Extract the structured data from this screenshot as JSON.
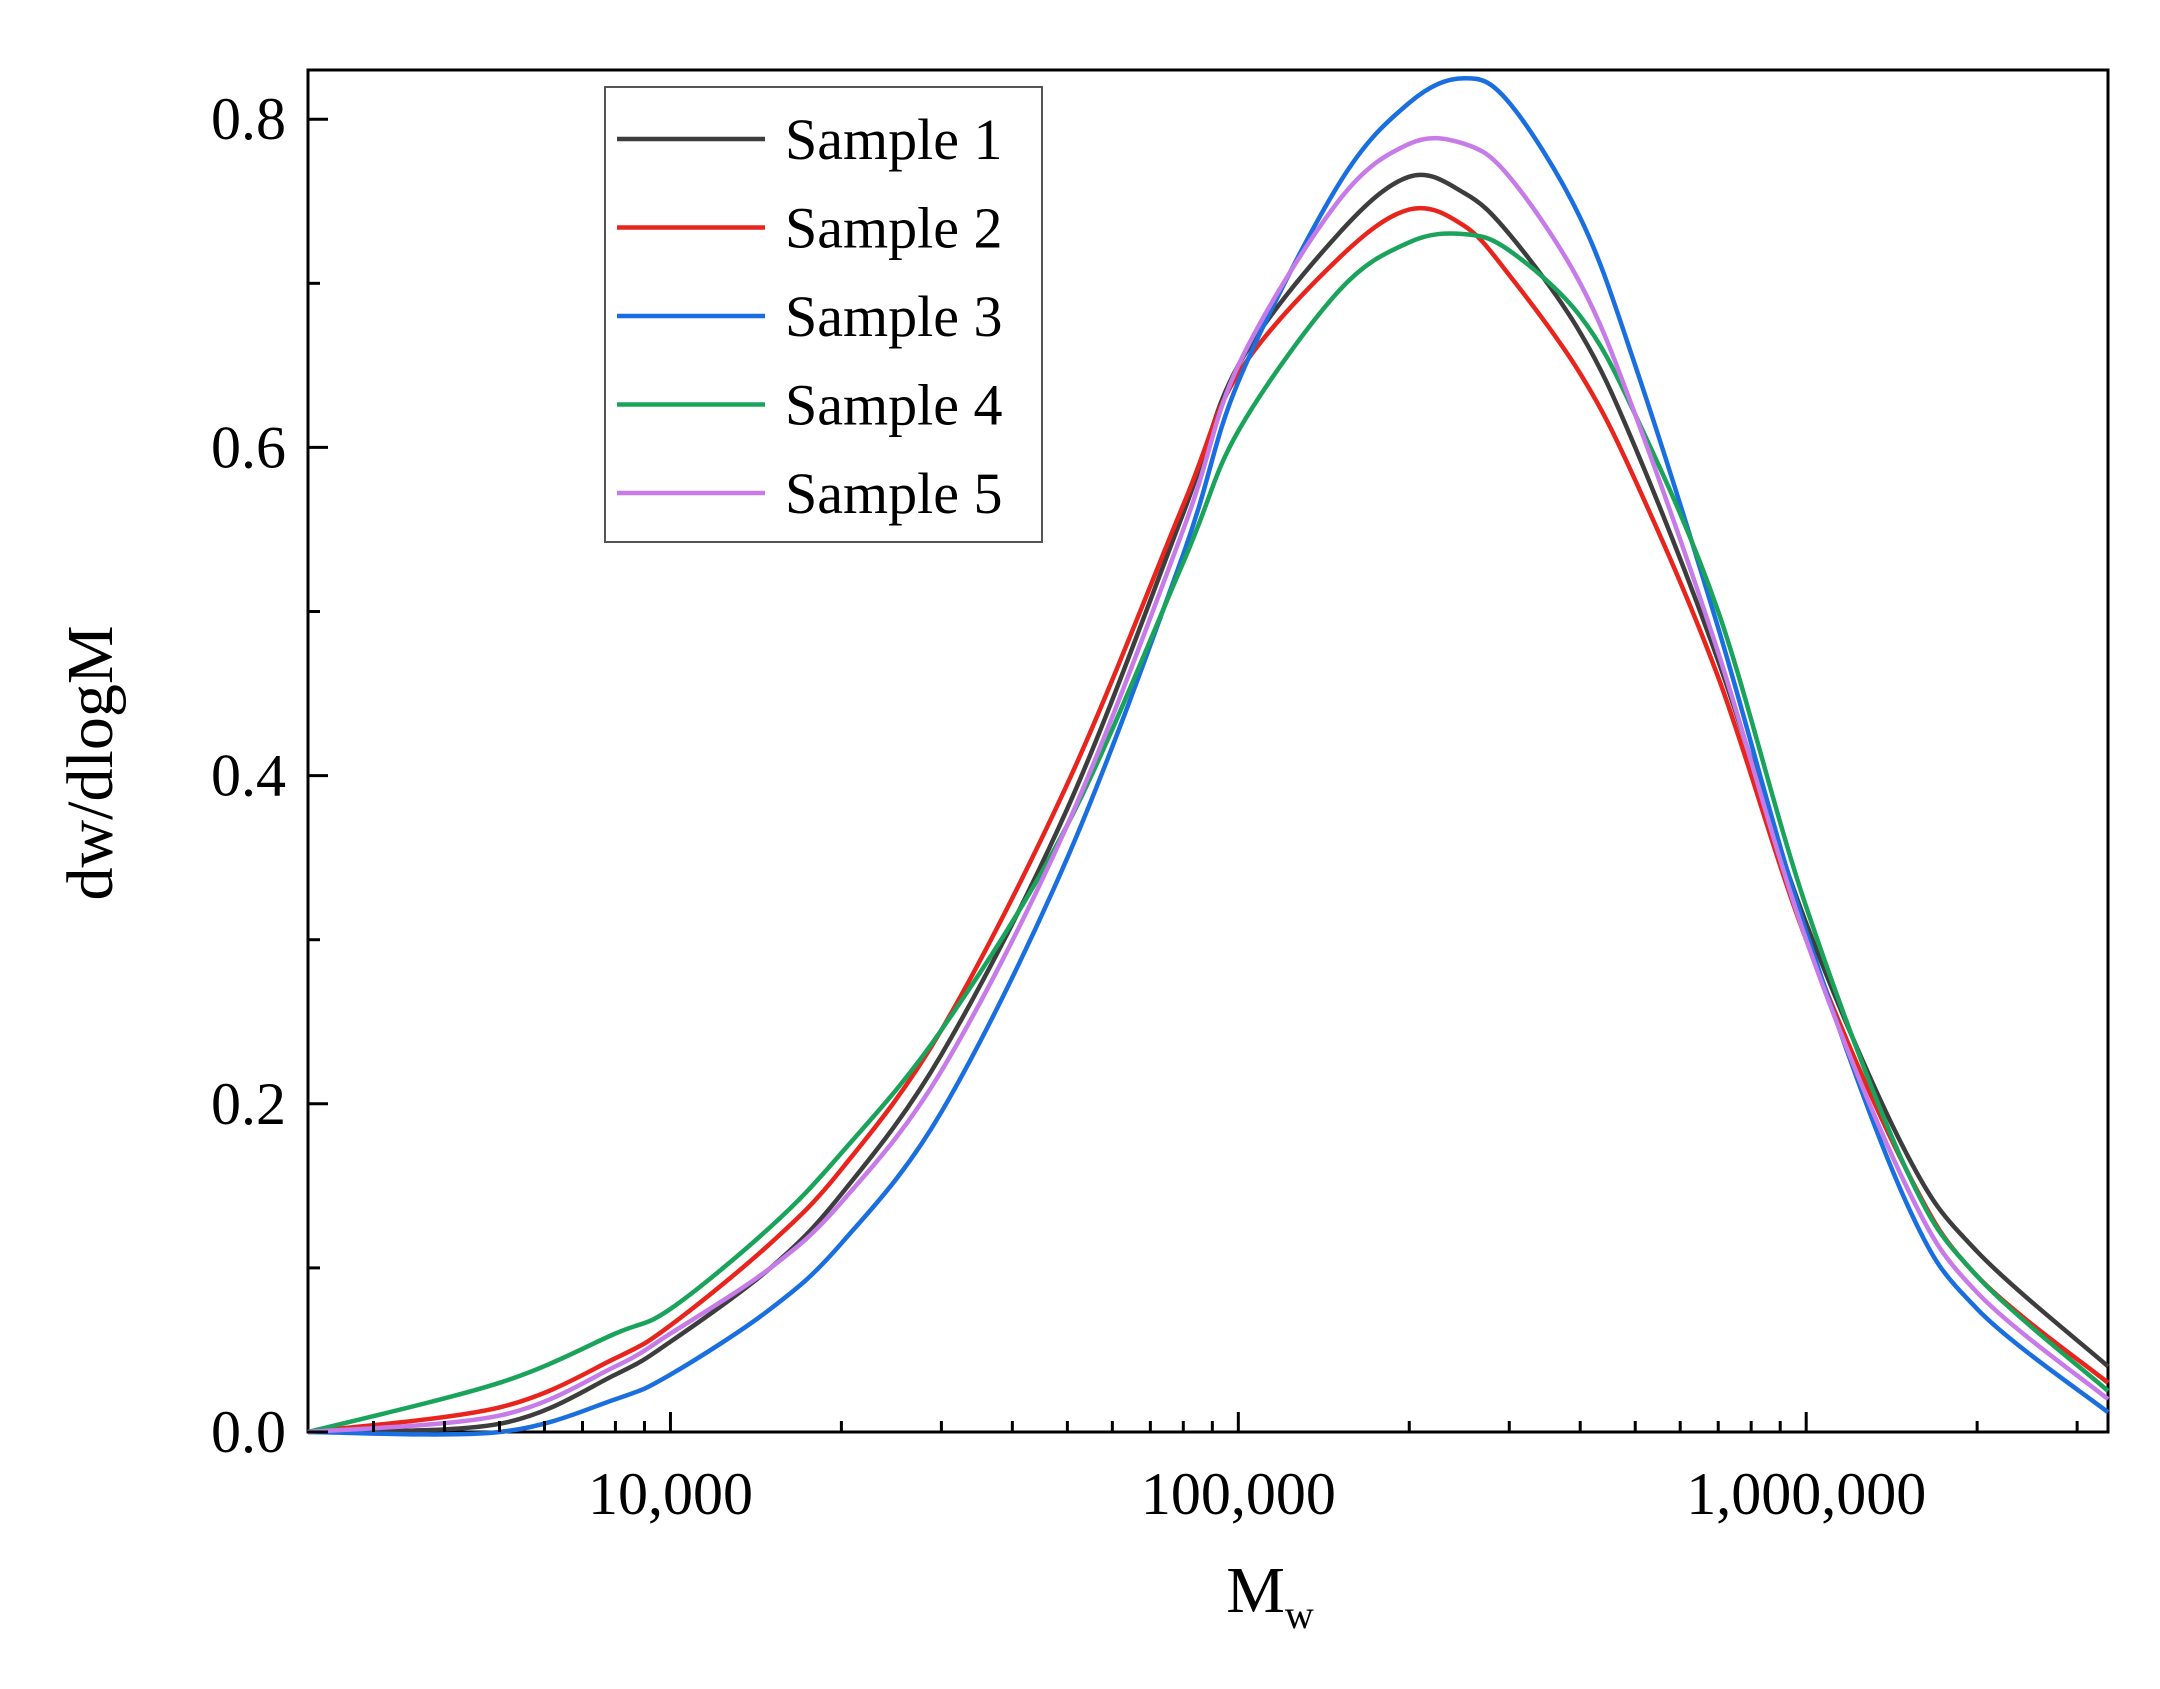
{
  "chart_data": {
    "type": "line",
    "title": "",
    "xlabel": "M",
    "xlabel_sub": "w",
    "ylabel": "dw/dlogM",
    "xscale": "log",
    "xlim": [
      2300,
      3400000
    ],
    "ylim": [
      0,
      0.83
    ],
    "x_tick_values": [
      10000,
      100000,
      1000000
    ],
    "x_tick_labels": [
      "10,000",
      "100,000",
      "1,000,000"
    ],
    "y_tick_values": [
      0.0,
      0.2,
      0.4,
      0.6,
      0.8
    ],
    "y_tick_labels": [
      "0.0",
      "0.2",
      "0.4",
      "0.6",
      "0.8"
    ],
    "legend_position": "top-left",
    "series": [
      {
        "name": "Sample 1",
        "color": "#3d3d3d",
        "x": [
          2300,
          5000,
          8000,
          10000,
          15000,
          20000,
          30000,
          50000,
          80000,
          100000,
          150000,
          200000,
          250000,
          300000,
          400000,
          500000,
          700000,
          1000000,
          1500000,
          2000000,
          3400000
        ],
        "y": [
          0.0,
          0.005,
          0.035,
          0.055,
          0.1,
          0.145,
          0.23,
          0.38,
          0.56,
          0.65,
          0.73,
          0.765,
          0.755,
          0.73,
          0.67,
          0.6,
          0.47,
          0.31,
          0.17,
          0.11,
          0.04
        ]
      },
      {
        "name": "Sample 2",
        "color": "#e8241c",
        "x": [
          2300,
          5000,
          8000,
          10000,
          15000,
          20000,
          30000,
          50000,
          80000,
          100000,
          150000,
          200000,
          250000,
          300000,
          400000,
          500000,
          700000,
          1000000,
          1500000,
          2000000,
          3400000
        ],
        "y": [
          0.0,
          0.015,
          0.045,
          0.065,
          0.115,
          0.16,
          0.245,
          0.395,
          0.565,
          0.645,
          0.715,
          0.745,
          0.735,
          0.705,
          0.645,
          0.58,
          0.46,
          0.3,
          0.16,
          0.095,
          0.03
        ]
      },
      {
        "name": "Sample 3",
        "color": "#1a6fe0",
        "x": [
          2300,
          5000,
          8000,
          10000,
          15000,
          20000,
          30000,
          50000,
          80000,
          100000,
          150000,
          200000,
          250000,
          300000,
          400000,
          500000,
          700000,
          1000000,
          1500000,
          2000000,
          3400000
        ],
        "y": [
          0.0,
          0.0,
          0.02,
          0.035,
          0.075,
          0.115,
          0.195,
          0.35,
          0.535,
          0.64,
          0.76,
          0.81,
          0.825,
          0.81,
          0.74,
          0.65,
          0.49,
          0.305,
          0.14,
          0.075,
          0.012
        ]
      },
      {
        "name": "Sample 4",
        "color": "#1aa35a",
        "x": [
          2300,
          5000,
          8000,
          10000,
          15000,
          20000,
          30000,
          50000,
          80000,
          100000,
          150000,
          200000,
          250000,
          300000,
          400000,
          500000,
          700000,
          1000000,
          1500000,
          2000000,
          3400000
        ],
        "y": [
          0.0,
          0.03,
          0.06,
          0.075,
          0.125,
          0.17,
          0.245,
          0.37,
          0.53,
          0.61,
          0.695,
          0.725,
          0.73,
          0.72,
          0.68,
          0.62,
          0.5,
          0.32,
          0.16,
          0.095,
          0.025
        ]
      },
      {
        "name": "Sample 5",
        "color": "#c77be8",
        "x": [
          2300,
          5000,
          8000,
          10000,
          15000,
          20000,
          30000,
          50000,
          80000,
          100000,
          150000,
          200000,
          250000,
          300000,
          400000,
          500000,
          700000,
          1000000,
          1500000,
          2000000,
          3400000
        ],
        "y": [
          0.0,
          0.01,
          0.04,
          0.06,
          0.1,
          0.14,
          0.22,
          0.37,
          0.55,
          0.65,
          0.75,
          0.785,
          0.785,
          0.765,
          0.7,
          0.62,
          0.475,
          0.3,
          0.15,
          0.085,
          0.02
        ]
      }
    ]
  }
}
